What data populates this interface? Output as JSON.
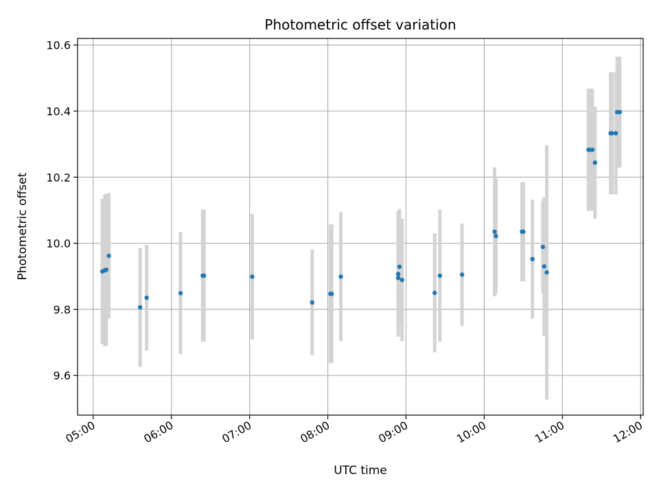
{
  "chart_data": {
    "type": "scatter",
    "title": "Photometric offset variation",
    "xlabel": "UTC time",
    "ylabel": "Photometric offset",
    "x_ticks": [
      "05:00",
      "06:00",
      "07:00",
      "08:00",
      "09:00",
      "10:00",
      "11:00",
      "12:00"
    ],
    "y_ticks": [
      "9.6",
      "9.8",
      "10.0",
      "10.2",
      "10.4",
      "10.6"
    ],
    "xlim": [
      "04:48",
      "12:02"
    ],
    "ylim": [
      9.48,
      10.62
    ],
    "grid": true,
    "point_color": "#1f77b4",
    "errorbar_color": "#d3d3d3",
    "points": [
      {
        "x": "05:07",
        "y": 9.915,
        "err": 0.22
      },
      {
        "x": "05:09",
        "y": 9.918,
        "err": 0.23
      },
      {
        "x": "05:10",
        "y": 9.92,
        "err": 0.23
      },
      {
        "x": "05:12",
        "y": 9.962,
        "err": 0.19
      },
      {
        "x": "05:36",
        "y": 9.806,
        "err": 0.18
      },
      {
        "x": "05:41",
        "y": 9.835,
        "err": 0.16
      },
      {
        "x": "06:07",
        "y": 9.849,
        "err": 0.185
      },
      {
        "x": "06:24",
        "y": 9.902,
        "err": 0.2
      },
      {
        "x": "06:25",
        "y": 9.902,
        "err": 0.2
      },
      {
        "x": "07:02",
        "y": 9.899,
        "err": 0.19
      },
      {
        "x": "07:48",
        "y": 9.821,
        "err": 0.16
      },
      {
        "x": "08:02",
        "y": 9.847,
        "err": 0.21
      },
      {
        "x": "08:03",
        "y": 9.847,
        "err": 0.21
      },
      {
        "x": "08:10",
        "y": 9.899,
        "err": 0.195
      },
      {
        "x": "08:54",
        "y": 9.907,
        "err": 0.19
      },
      {
        "x": "08:54",
        "y": 9.895,
        "err": 0.175
      },
      {
        "x": "08:55",
        "y": 9.929,
        "err": 0.175
      },
      {
        "x": "08:57",
        "y": 9.889,
        "err": 0.185
      },
      {
        "x": "09:22",
        "y": 9.85,
        "err": 0.18
      },
      {
        "x": "09:26",
        "y": 9.902,
        "err": 0.2
      },
      {
        "x": "09:43",
        "y": 9.905,
        "err": 0.155
      },
      {
        "x": "10:08",
        "y": 10.035,
        "err": 0.195
      },
      {
        "x": "10:09",
        "y": 10.022,
        "err": 0.175
      },
      {
        "x": "10:29",
        "y": 10.035,
        "err": 0.15
      },
      {
        "x": "10:30",
        "y": 10.035,
        "err": 0.15
      },
      {
        "x": "10:37",
        "y": 9.952,
        "err": 0.18
      },
      {
        "x": "10:45",
        "y": 9.989,
        "err": 0.14
      },
      {
        "x": "10:46",
        "y": 9.93,
        "err": 0.21
      },
      {
        "x": "10:48",
        "y": 9.912,
        "err": 0.385
      },
      {
        "x": "11:20",
        "y": 10.283,
        "err": 0.185
      },
      {
        "x": "11:21",
        "y": 10.283,
        "err": 0.185
      },
      {
        "x": "11:23",
        "y": 10.283,
        "err": 0.185
      },
      {
        "x": "11:25",
        "y": 10.244,
        "err": 0.17
      },
      {
        "x": "11:37",
        "y": 10.333,
        "err": 0.185
      },
      {
        "x": "11:38",
        "y": 10.333,
        "err": 0.185
      },
      {
        "x": "11:41",
        "y": 10.333,
        "err": 0.185
      },
      {
        "x": "11:42",
        "y": 10.397,
        "err": 0.168
      },
      {
        "x": "11:44",
        "y": 10.397,
        "err": 0.168
      }
    ]
  }
}
